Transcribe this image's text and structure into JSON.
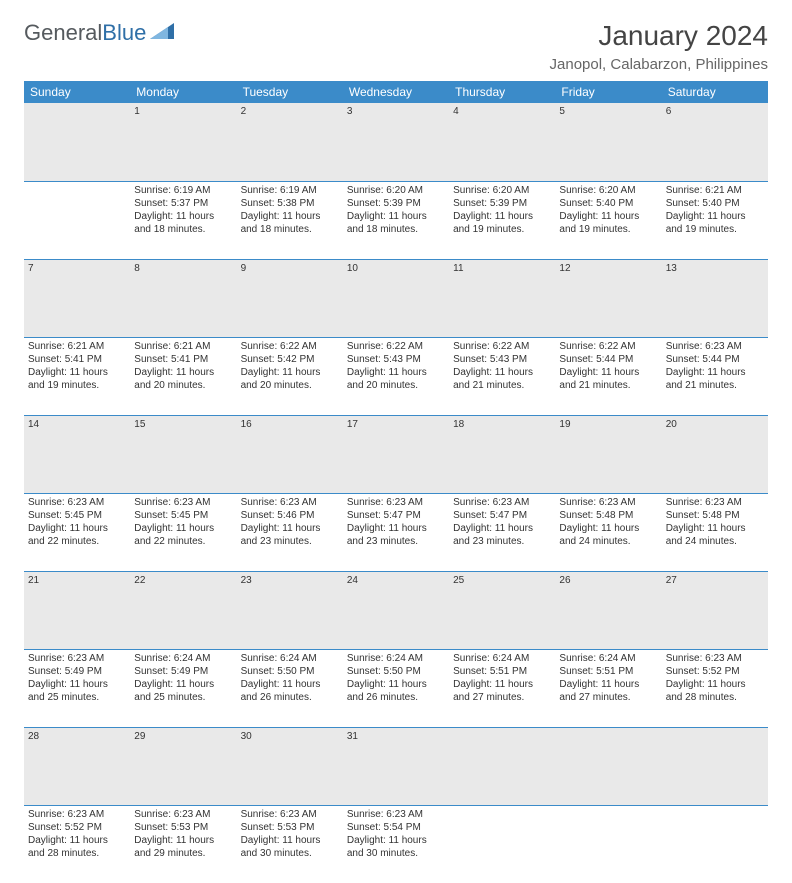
{
  "brand": {
    "part1": "General",
    "part2": "Blue"
  },
  "title": "January 2024",
  "location": "Janopol, Calabarzon, Philippines",
  "colors": {
    "header_bg": "#3b8bc9",
    "header_fg": "#ffffff",
    "daynum_bg": "#e9e9e9",
    "border": "#3b8bc9",
    "text": "#333333",
    "logo_gray": "#555a5e",
    "logo_blue": "#2f6fa7"
  },
  "day_headers": [
    "Sunday",
    "Monday",
    "Tuesday",
    "Wednesday",
    "Thursday",
    "Friday",
    "Saturday"
  ],
  "weeks": [
    {
      "nums": [
        "",
        "1",
        "2",
        "3",
        "4",
        "5",
        "6"
      ],
      "cells": [
        null,
        {
          "sunrise": "6:19 AM",
          "sunset": "5:37 PM",
          "dl1": "11 hours",
          "dl2": "18 minutes."
        },
        {
          "sunrise": "6:19 AM",
          "sunset": "5:38 PM",
          "dl1": "11 hours",
          "dl2": "18 minutes."
        },
        {
          "sunrise": "6:20 AM",
          "sunset": "5:39 PM",
          "dl1": "11 hours",
          "dl2": "18 minutes."
        },
        {
          "sunrise": "6:20 AM",
          "sunset": "5:39 PM",
          "dl1": "11 hours",
          "dl2": "19 minutes."
        },
        {
          "sunrise": "6:20 AM",
          "sunset": "5:40 PM",
          "dl1": "11 hours",
          "dl2": "19 minutes."
        },
        {
          "sunrise": "6:21 AM",
          "sunset": "5:40 PM",
          "dl1": "11 hours",
          "dl2": "19 minutes."
        }
      ]
    },
    {
      "nums": [
        "7",
        "8",
        "9",
        "10",
        "11",
        "12",
        "13"
      ],
      "cells": [
        {
          "sunrise": "6:21 AM",
          "sunset": "5:41 PM",
          "dl1": "11 hours",
          "dl2": "19 minutes."
        },
        {
          "sunrise": "6:21 AM",
          "sunset": "5:41 PM",
          "dl1": "11 hours",
          "dl2": "20 minutes."
        },
        {
          "sunrise": "6:22 AM",
          "sunset": "5:42 PM",
          "dl1": "11 hours",
          "dl2": "20 minutes."
        },
        {
          "sunrise": "6:22 AM",
          "sunset": "5:43 PM",
          "dl1": "11 hours",
          "dl2": "20 minutes."
        },
        {
          "sunrise": "6:22 AM",
          "sunset": "5:43 PM",
          "dl1": "11 hours",
          "dl2": "21 minutes."
        },
        {
          "sunrise": "6:22 AM",
          "sunset": "5:44 PM",
          "dl1": "11 hours",
          "dl2": "21 minutes."
        },
        {
          "sunrise": "6:23 AM",
          "sunset": "5:44 PM",
          "dl1": "11 hours",
          "dl2": "21 minutes."
        }
      ]
    },
    {
      "nums": [
        "14",
        "15",
        "16",
        "17",
        "18",
        "19",
        "20"
      ],
      "cells": [
        {
          "sunrise": "6:23 AM",
          "sunset": "5:45 PM",
          "dl1": "11 hours",
          "dl2": "22 minutes."
        },
        {
          "sunrise": "6:23 AM",
          "sunset": "5:45 PM",
          "dl1": "11 hours",
          "dl2": "22 minutes."
        },
        {
          "sunrise": "6:23 AM",
          "sunset": "5:46 PM",
          "dl1": "11 hours",
          "dl2": "23 minutes."
        },
        {
          "sunrise": "6:23 AM",
          "sunset": "5:47 PM",
          "dl1": "11 hours",
          "dl2": "23 minutes."
        },
        {
          "sunrise": "6:23 AM",
          "sunset": "5:47 PM",
          "dl1": "11 hours",
          "dl2": "23 minutes."
        },
        {
          "sunrise": "6:23 AM",
          "sunset": "5:48 PM",
          "dl1": "11 hours",
          "dl2": "24 minutes."
        },
        {
          "sunrise": "6:23 AM",
          "sunset": "5:48 PM",
          "dl1": "11 hours",
          "dl2": "24 minutes."
        }
      ]
    },
    {
      "nums": [
        "21",
        "22",
        "23",
        "24",
        "25",
        "26",
        "27"
      ],
      "cells": [
        {
          "sunrise": "6:23 AM",
          "sunset": "5:49 PM",
          "dl1": "11 hours",
          "dl2": "25 minutes."
        },
        {
          "sunrise": "6:24 AM",
          "sunset": "5:49 PM",
          "dl1": "11 hours",
          "dl2": "25 minutes."
        },
        {
          "sunrise": "6:24 AM",
          "sunset": "5:50 PM",
          "dl1": "11 hours",
          "dl2": "26 minutes."
        },
        {
          "sunrise": "6:24 AM",
          "sunset": "5:50 PM",
          "dl1": "11 hours",
          "dl2": "26 minutes."
        },
        {
          "sunrise": "6:24 AM",
          "sunset": "5:51 PM",
          "dl1": "11 hours",
          "dl2": "27 minutes."
        },
        {
          "sunrise": "6:24 AM",
          "sunset": "5:51 PM",
          "dl1": "11 hours",
          "dl2": "27 minutes."
        },
        {
          "sunrise": "6:23 AM",
          "sunset": "5:52 PM",
          "dl1": "11 hours",
          "dl2": "28 minutes."
        }
      ]
    },
    {
      "nums": [
        "28",
        "29",
        "30",
        "31",
        "",
        "",
        ""
      ],
      "cells": [
        {
          "sunrise": "6:23 AM",
          "sunset": "5:52 PM",
          "dl1": "11 hours",
          "dl2": "28 minutes."
        },
        {
          "sunrise": "6:23 AM",
          "sunset": "5:53 PM",
          "dl1": "11 hours",
          "dl2": "29 minutes."
        },
        {
          "sunrise": "6:23 AM",
          "sunset": "5:53 PM",
          "dl1": "11 hours",
          "dl2": "30 minutes."
        },
        {
          "sunrise": "6:23 AM",
          "sunset": "5:54 PM",
          "dl1": "11 hours",
          "dl2": "30 minutes."
        },
        null,
        null,
        null
      ]
    }
  ],
  "labels": {
    "sunrise": "Sunrise:",
    "sunset": "Sunset:",
    "daylight": "Daylight:",
    "and": "and"
  }
}
